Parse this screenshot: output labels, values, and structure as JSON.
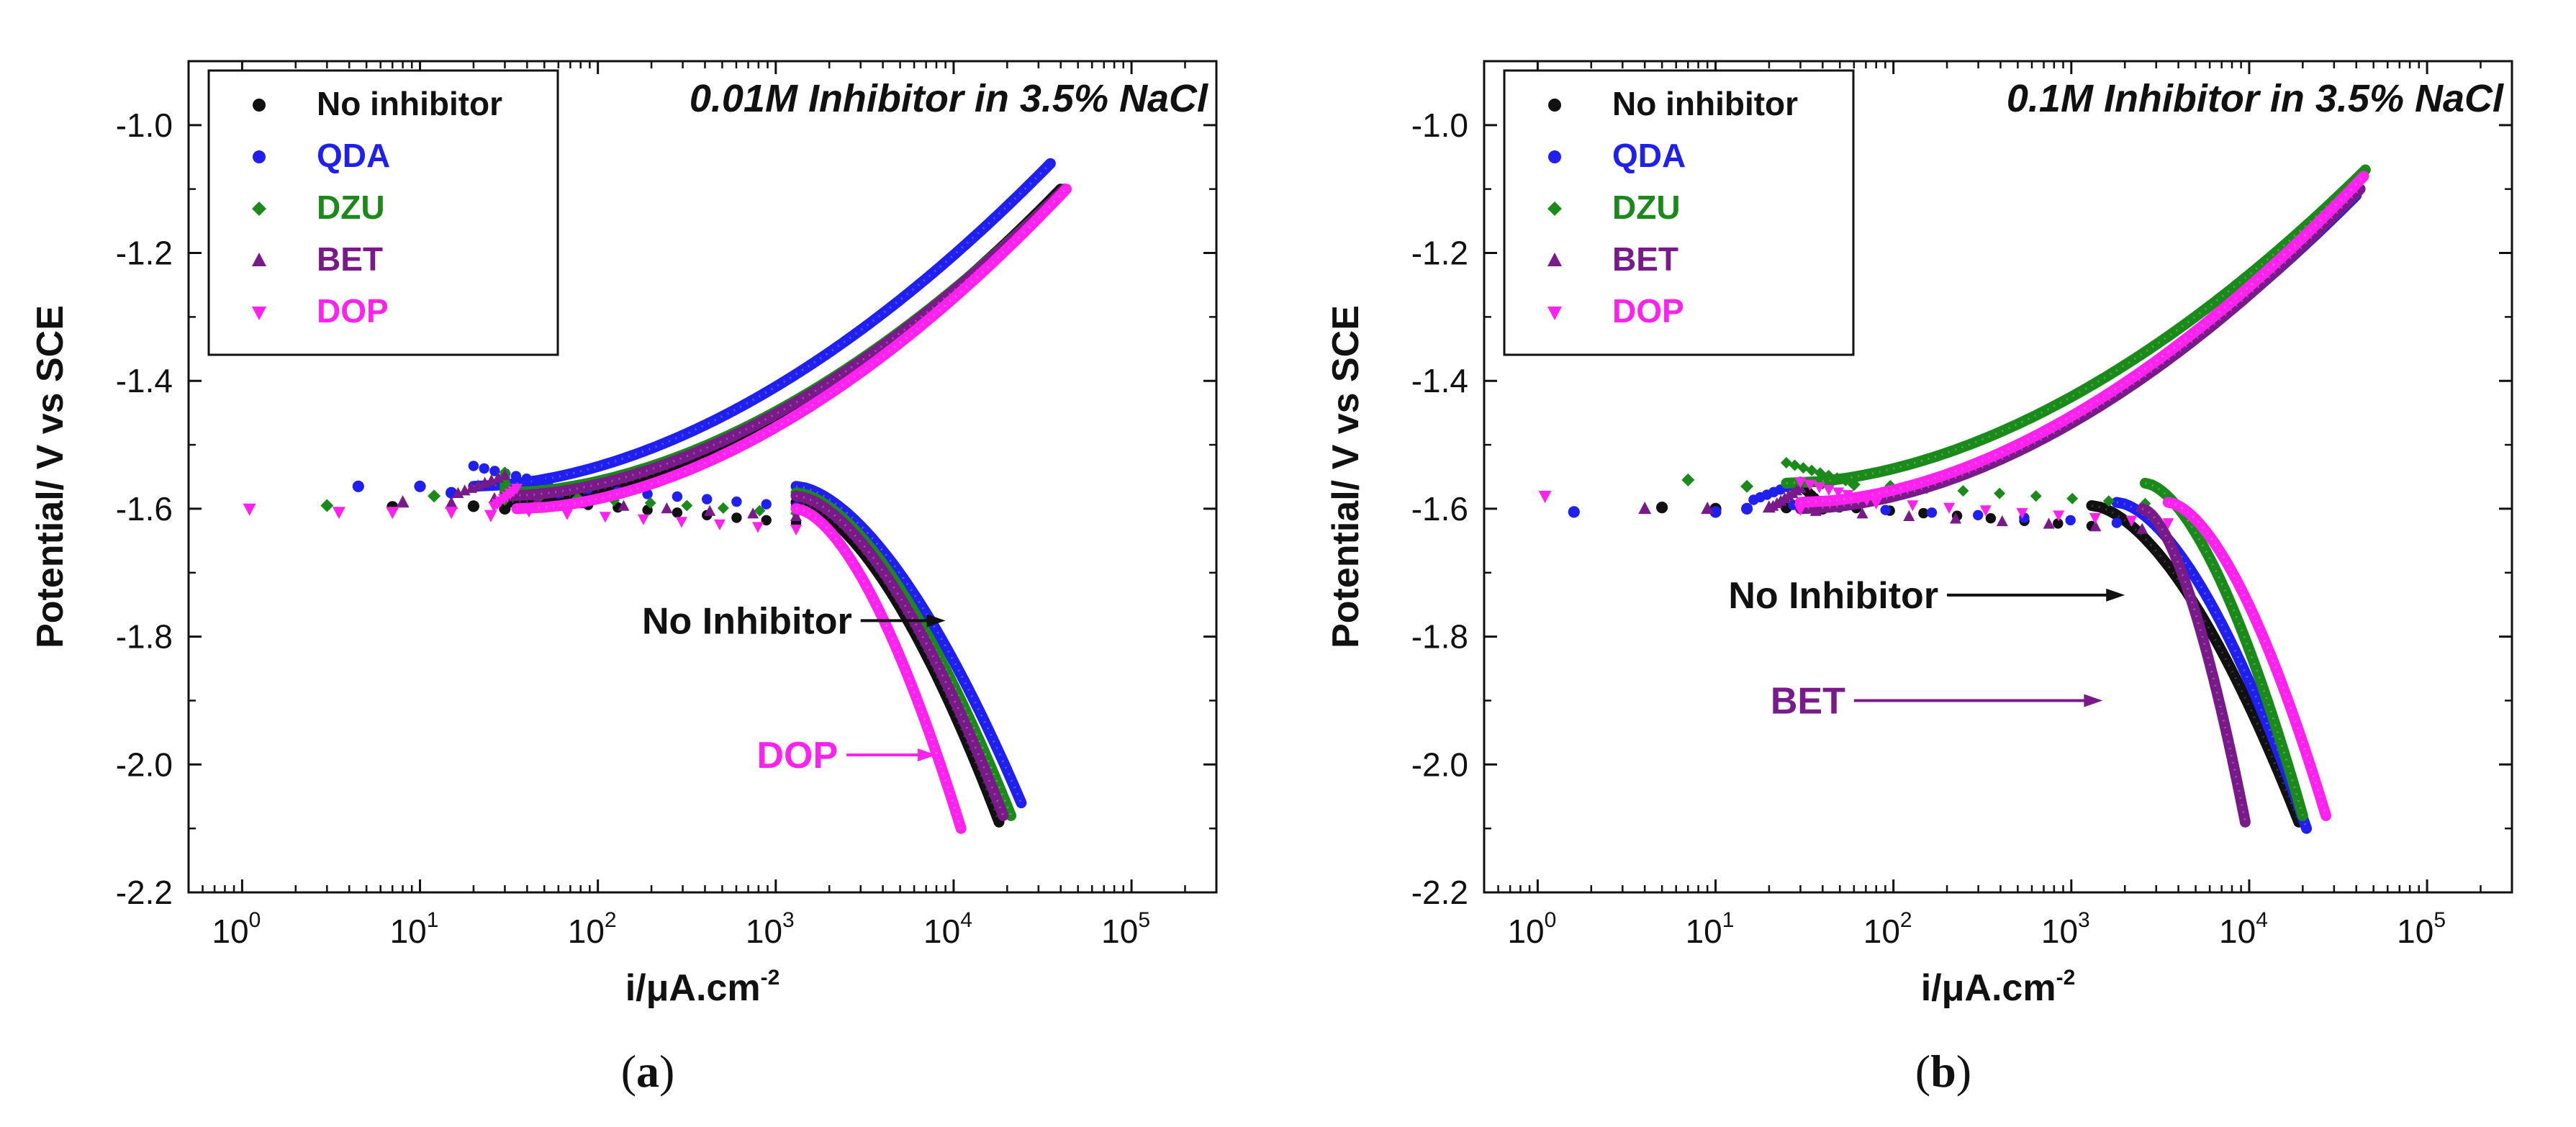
{
  "colors": {
    "No inhibitor": "#111111",
    "QDA": "#1f1ff0",
    "DZU": "#1a8a1a",
    "BET": "#7a1a8a",
    "DOP": "#ff22ee"
  },
  "chart_data": [
    {
      "type": "scatter",
      "panel_label": "(a)",
      "title": "0.01M Inhibitor in 3.5% NaCl",
      "xlabel": "i/μA.cm-2",
      "ylabel": "Potential/ V vs SCE",
      "xscale": "log",
      "xlim": [
        0.5,
        300000
      ],
      "ylim": [
        -2.2,
        -0.9
      ],
      "xticks": [
        {
          "value": 1,
          "base": "10",
          "exp": "0"
        },
        {
          "value": 10,
          "base": "10",
          "exp": "1"
        },
        {
          "value": 100,
          "base": "10",
          "exp": "2"
        },
        {
          "value": 1000,
          "base": "10",
          "exp": "3"
        },
        {
          "value": 10000,
          "base": "10",
          "exp": "4"
        },
        {
          "value": 100000,
          "base": "10",
          "exp": "5"
        }
      ],
      "yticks": [
        "-1.0",
        "-1.2",
        "-1.4",
        "-1.6",
        "-1.8",
        "-2.0",
        "-2.2"
      ],
      "legend": [
        "No inhibitor",
        "QDA",
        "DZU",
        "BET",
        "DOP"
      ],
      "annotations": [
        {
          "text": "No Inhibitor",
          "color": "#111111",
          "from": [
            3000,
            -1.775
          ],
          "to": [
            9000,
            -1.775
          ]
        },
        {
          "text": "DOP",
          "color": "#ff22ee",
          "from": [
            2500,
            -1.985
          ],
          "to": [
            8000,
            -1.985
          ]
        }
      ],
      "series": [
        {
          "name": "No inhibitor",
          "ecorr": -1.59,
          "icorr": 400,
          "ta": 30,
          "tc": 1300,
          "anodic_end": [
            40000,
            -1.1
          ],
          "cathodic_end": [
            18000,
            -2.09
          ],
          "noise": [
            [
              7,
              -1.597
            ],
            [
              20,
              -1.596
            ],
            [
              30,
              -1.6
            ],
            [
              60,
              -1.59
            ]
          ]
        },
        {
          "name": "QDA",
          "ecorr": -1.565,
          "icorr": 70,
          "ta": 20,
          "tc": 1300,
          "anodic_end": [
            35000,
            -1.06
          ],
          "cathodic_end": [
            24000,
            -2.06
          ],
          "noise": [
            [
              4.5,
              -1.565
            ],
            [
              10,
              -1.565
            ],
            [
              15,
              -1.575
            ],
            [
              35,
              -1.57
            ],
            [
              60,
              -1.575
            ]
          ]
        },
        {
          "name": "DZU",
          "ecorr": -1.575,
          "icorr": 250,
          "ta": 30,
          "tc": 1300,
          "anodic_end": [
            42000,
            -1.1
          ],
          "cathodic_end": [
            21000,
            -2.08
          ],
          "noise": [
            [
              3,
              -1.595
            ],
            [
              12,
              -1.58
            ],
            [
              30,
              -1.585
            ]
          ]
        },
        {
          "name": "BET",
          "ecorr": -1.58,
          "icorr": 350,
          "ta": 30,
          "tc": 1300,
          "anodic_end": [
            42000,
            -1.1
          ],
          "cathodic_end": [
            19000,
            -2.08
          ],
          "noise": [
            [
              8,
              -1.59
            ],
            [
              15,
              -1.592
            ]
          ]
        },
        {
          "name": "DOP",
          "ecorr": -1.6,
          "icorr": 1000,
          "ta": 35,
          "tc": 1300,
          "anodic_end": [
            43000,
            -1.1
          ],
          "cathodic_end": [
            11000,
            -2.1
          ],
          "noise": [
            [
              1.1,
              -1.6
            ],
            [
              3.5,
              -1.605
            ],
            [
              7,
              -1.605
            ],
            [
              15,
              -1.605
            ],
            [
              25,
              -1.61
            ]
          ]
        }
      ]
    },
    {
      "type": "scatter",
      "panel_label": "(b)",
      "title": "0.1M Inhibitor in 3.5% NaCl",
      "xlabel": "i/μA.cm-2",
      "ylabel": "Potential/ V vs SCE",
      "xscale": "log",
      "xlim": [
        0.5,
        300000
      ],
      "ylim": [
        -2.2,
        -0.9
      ],
      "xticks": [
        {
          "value": 1,
          "base": "10",
          "exp": "0"
        },
        {
          "value": 10,
          "base": "10",
          "exp": "1"
        },
        {
          "value": 100,
          "base": "10",
          "exp": "2"
        },
        {
          "value": 1000,
          "base": "10",
          "exp": "3"
        },
        {
          "value": 10000,
          "base": "10",
          "exp": "4"
        },
        {
          "value": 100000,
          "base": "10",
          "exp": "5"
        }
      ],
      "yticks": [
        "-1.0",
        "-1.2",
        "-1.4",
        "-1.6",
        "-1.8",
        "-2.0",
        "-2.2"
      ],
      "legend": [
        "No inhibitor",
        "QDA",
        "DZU",
        "BET",
        "DOP"
      ],
      "annotations": [
        {
          "text": "No Inhibitor",
          "color": "#111111",
          "from": [
            200,
            -1.735
          ],
          "to": [
            2000,
            -1.735
          ]
        },
        {
          "text": "BET",
          "color": "#7a1a8a",
          "from": [
            60,
            -1.9
          ],
          "to": [
            1500,
            -1.9
          ]
        }
      ],
      "series": [
        {
          "name": "No inhibitor",
          "ecorr": -1.595,
          "icorr": 400,
          "ta": 30,
          "tc": 1300,
          "anodic_end": [
            42000,
            -1.1
          ],
          "cathodic_end": [
            19000,
            -2.09
          ],
          "noise": [
            [
              5,
              -1.598
            ],
            [
              10,
              -1.6
            ],
            [
              25,
              -1.598
            ],
            [
              40,
              -1.6
            ]
          ]
        },
        {
          "name": "QDA",
          "ecorr": -1.59,
          "icorr": 500,
          "ta": 30,
          "tc": 1800,
          "anodic_end": [
            40000,
            -1.11
          ],
          "cathodic_end": [
            21000,
            -2.1
          ],
          "noise": [
            [
              1.6,
              -1.605
            ],
            [
              10,
              -1.605
            ],
            [
              15,
              -1.6
            ]
          ]
        },
        {
          "name": "DZU",
          "ecorr": -1.56,
          "icorr": 200,
          "ta": 25,
          "tc": 2600,
          "anodic_end": [
            45000,
            -1.07
          ],
          "cathodic_end": [
            20000,
            -2.08
          ],
          "noise": [
            [
              7,
              -1.555
            ],
            [
              15,
              -1.565
            ],
            [
              40,
              -1.56
            ],
            [
              60,
              -1.562
            ]
          ]
        },
        {
          "name": "BET",
          "ecorr": -1.6,
          "icorr": 55,
          "ta": 30,
          "tc": 2500,
          "anodic_end": [
            42000,
            -1.1
          ],
          "cathodic_end": [
            9500,
            -2.09
          ],
          "noise": [
            [
              4,
              -1.6
            ],
            [
              9,
              -1.6
            ],
            [
              20,
              -1.598
            ]
          ]
        },
        {
          "name": "DOP",
          "ecorr": -1.59,
          "icorr": 1500,
          "ta": 30,
          "tc": 3500,
          "anodic_end": [
            44000,
            -1.08
          ],
          "cathodic_end": [
            27000,
            -2.08
          ],
          "noise": [
            [
              1.1,
              -1.58
            ],
            [
              30,
              -1.6
            ],
            [
              80,
              -1.59
            ]
          ]
        }
      ]
    }
  ]
}
